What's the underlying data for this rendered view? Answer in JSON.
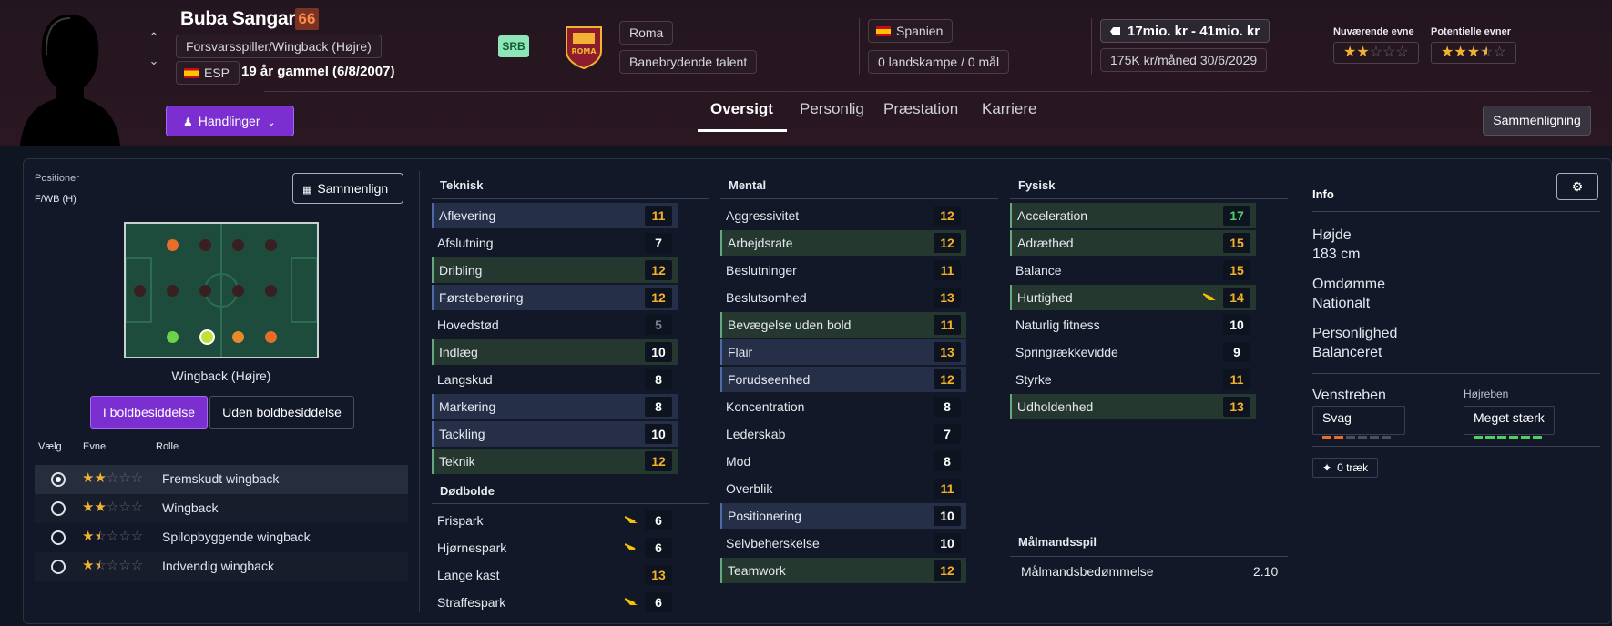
{
  "player": {
    "name": "Buba Sangaré",
    "ca": "66",
    "position": "Forsvarsspiller/Wingback (Højre)",
    "nation_code": "ESP",
    "age_text": "19 år gammel (6/8/2007)",
    "role_badge": "SRB"
  },
  "club": {
    "name": "Roma",
    "status": "Banebrydende talent",
    "crest_text": "ROMA"
  },
  "nation": {
    "country": "Spanien",
    "caps": "0 landskampe / 0 mål"
  },
  "contract": {
    "value": "17mio. kr - 41mio. kr",
    "wage": "175K kr/måned",
    "expires": "30/6/2029"
  },
  "ability": {
    "current_label": "Nuværende evne",
    "potential_label": "Potentielle evner",
    "current_stars": 2,
    "potential_stars": 3.5
  },
  "header": {
    "actions_label": "Handlinger",
    "compare_label": "Sammenligning",
    "tabs": [
      "Oversigt",
      "Personlig",
      "Præstation",
      "Karriere"
    ]
  },
  "positions": {
    "title": "Positioner",
    "code": "F/WB (H)",
    "compare_button": "Sammenlign",
    "selected_role": "Wingback (Højre)",
    "in_possession": "I boldbesiddelse",
    "out_possession": "Uden boldbesiddelse",
    "col_select": "Vælg",
    "col_ability": "Evne",
    "col_role": "Rolle",
    "roles": [
      {
        "name": "Fremskudt wingback",
        "stars": 2,
        "selected": true
      },
      {
        "name": "Wingback",
        "stars": 2,
        "selected": false
      },
      {
        "name": "Spilopbyggende wingback",
        "stars": 1.5,
        "selected": false
      },
      {
        "name": "Indvendig wingback",
        "stars": 1.5,
        "selected": false
      }
    ]
  },
  "technical": {
    "title": "Teknisk",
    "items": [
      {
        "name": "Aflevering",
        "value": "11"
      },
      {
        "name": "Afslutning",
        "value": "7"
      },
      {
        "name": "Dribling",
        "value": "12"
      },
      {
        "name": "Førsteberøring",
        "value": "12"
      },
      {
        "name": "Hovedstød",
        "value": "5"
      },
      {
        "name": "Indlæg",
        "value": "10"
      },
      {
        "name": "Langskud",
        "value": "8"
      },
      {
        "name": "Markering",
        "value": "8"
      },
      {
        "name": "Tackling",
        "value": "10"
      },
      {
        "name": "Teknik",
        "value": "12"
      }
    ]
  },
  "setpieces": {
    "title": "Dødbolde",
    "items": [
      {
        "name": "Frispark",
        "value": "6"
      },
      {
        "name": "Hjørnespark",
        "value": "6"
      },
      {
        "name": "Lange kast",
        "value": "13"
      },
      {
        "name": "Straffespark",
        "value": "6"
      }
    ]
  },
  "mental": {
    "title": "Mental",
    "items": [
      {
        "name": "Aggressivitet",
        "value": "12"
      },
      {
        "name": "Arbejdsrate",
        "value": "12"
      },
      {
        "name": "Beslutninger",
        "value": "11"
      },
      {
        "name": "Beslutsomhed",
        "value": "13"
      },
      {
        "name": "Bevægelse uden bold",
        "value": "11"
      },
      {
        "name": "Flair",
        "value": "13"
      },
      {
        "name": "Forudseenhed",
        "value": "12"
      },
      {
        "name": "Koncentration",
        "value": "8"
      },
      {
        "name": "Lederskab",
        "value": "7"
      },
      {
        "name": "Mod",
        "value": "8"
      },
      {
        "name": "Overblik",
        "value": "11"
      },
      {
        "name": "Positionering",
        "value": "10"
      },
      {
        "name": "Selvbeherskelse",
        "value": "10"
      },
      {
        "name": "Teamwork",
        "value": "12"
      }
    ]
  },
  "physical": {
    "title": "Fysisk",
    "items": [
      {
        "name": "Acceleration",
        "value": "17"
      },
      {
        "name": "Adræthed",
        "value": "15"
      },
      {
        "name": "Balance",
        "value": "15"
      },
      {
        "name": "Hurtighed",
        "value": "14"
      },
      {
        "name": "Naturlig fitness",
        "value": "10"
      },
      {
        "name": "Springrækkevidde",
        "value": "9"
      },
      {
        "name": "Styrke",
        "value": "11"
      },
      {
        "name": "Udholdenhed",
        "value": "13"
      }
    ]
  },
  "goalkeeping": {
    "title": "Målmandsspil",
    "rating_label": "Målmandsbedømmelse",
    "rating_value": "2.10"
  },
  "info": {
    "title": "Info",
    "height_label": "Højde",
    "height": "183 cm",
    "reputation_label": "Omdømme",
    "reputation": "Nationalt",
    "personality_label": "Personlighed",
    "personality": "Balanceret",
    "left_foot_label": "Venstreben",
    "left_foot": "Svag",
    "right_foot_label": "Højreben",
    "right_foot": "Meget stærk",
    "traits": "0 træk"
  }
}
